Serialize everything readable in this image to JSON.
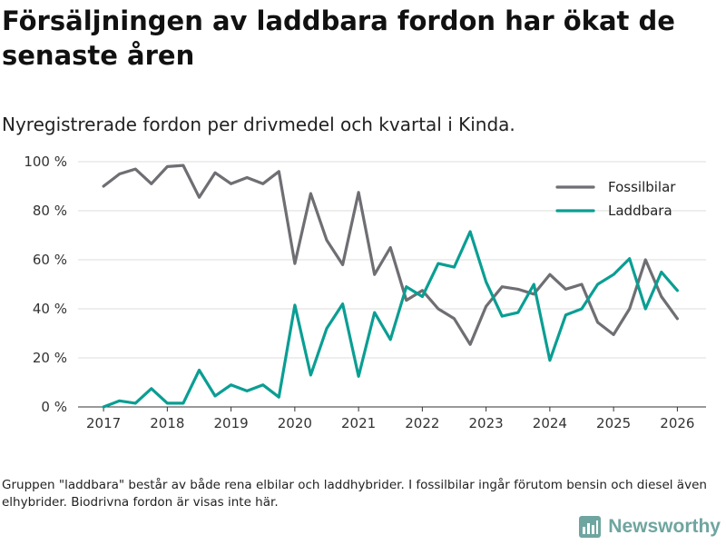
{
  "title": "Försäljningen av laddbara fordon har ökat de senaste åren",
  "subtitle": "Nyregistrerade fordon per drivmedel och kvartal i Kinda.",
  "footnote": "Gruppen \"laddbara\" består av både rena elbilar och laddhybrider. I fossilbilar ingår förutom bensin och diesel även elhybrider. Biodrivna fordon är visas inte här.",
  "brand": {
    "name": "Newsworthy",
    "icon": "newsworthy-logo-icon",
    "color": "#6fa5a0"
  },
  "chart_data": {
    "type": "line",
    "title": "Nyregistrerade fordon per drivmedel och kvartal i Kinda.",
    "xlabel": "",
    "ylabel": "",
    "x_start": 2017,
    "x_step": 0.25,
    "xlim": [
      2016.6,
      2026.45
    ],
    "ylim": [
      0,
      100
    ],
    "x_ticks": [
      2017,
      2018,
      2019,
      2020,
      2021,
      2022,
      2023,
      2024,
      2025,
      2026
    ],
    "y_ticks": [
      0,
      20,
      40,
      60,
      80,
      100
    ],
    "y_tick_labels": [
      "0 %",
      "20 %",
      "40 %",
      "60 %",
      "80 %",
      "100 %"
    ],
    "grid": true,
    "legend_position": "top-right",
    "series": [
      {
        "name": "Fossilbilar",
        "color": "#6e6e73",
        "values": [
          90,
          95,
          97,
          91,
          98,
          98.5,
          85.5,
          95.5,
          91,
          93.5,
          91,
          96,
          58.5,
          87,
          68,
          58,
          87.5,
          54,
          65,
          43.5,
          47.5,
          40,
          36,
          25.5,
          41,
          49,
          48,
          46,
          54,
          48,
          50,
          34.5,
          29.5,
          40,
          60,
          45,
          36
        ]
      },
      {
        "name": "Laddbara",
        "color": "#0a9e93",
        "values": [
          0,
          2.5,
          1.5,
          7.5,
          1.5,
          1.5,
          15,
          4.5,
          9,
          6.5,
          9,
          4,
          41.5,
          13,
          32,
          42,
          12.5,
          38.5,
          27.5,
          49,
          45,
          58.5,
          57,
          71.5,
          51,
          37,
          38.5,
          50,
          19,
          37.5,
          40,
          50,
          54,
          60.5,
          40,
          55,
          47.5
        ]
      }
    ]
  }
}
